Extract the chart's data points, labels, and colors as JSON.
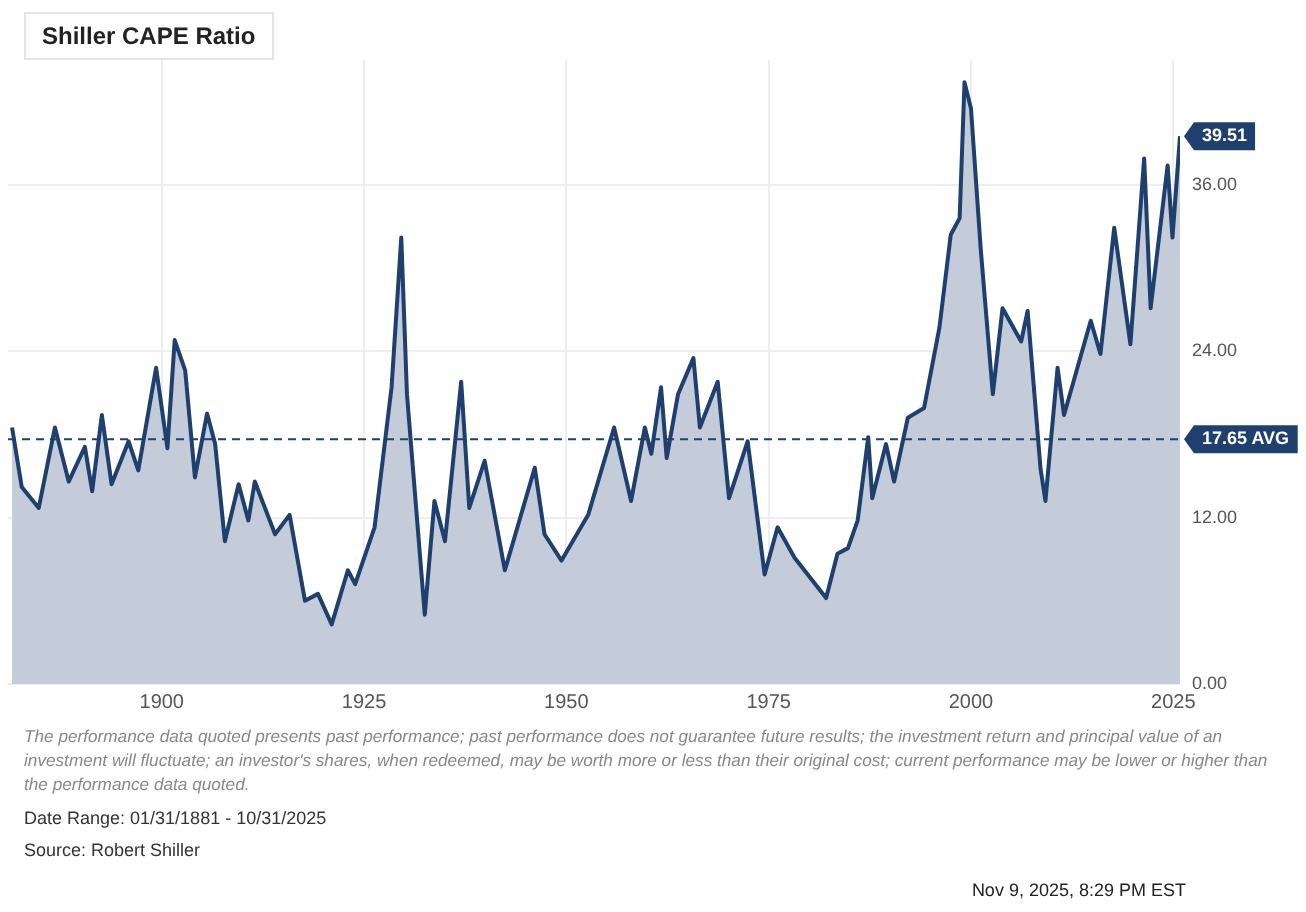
{
  "chart_data": {
    "type": "area",
    "title": "Shiller CAPE Ratio",
    "x": [
      1881.5,
      1882.7,
      1884.8,
      1886.8,
      1888.5,
      1890.5,
      1891.4,
      1892.6,
      1893.8,
      1895.9,
      1897.1,
      1899.3,
      1900.7,
      1901.6,
      1902.9,
      1904.1,
      1905.6,
      1906.6,
      1907.8,
      1909.5,
      1910.7,
      1911.5,
      1914,
      1915.8,
      1917.7,
      1919.3,
      1921,
      1923,
      1923.9,
      1926.3,
      1928.4,
      1929.6,
      1930.3,
      1932.5,
      1933.7,
      1935,
      1937,
      1938,
      1939.9,
      1942.4,
      1946.1,
      1947.3,
      1949.4,
      1952.7,
      1955.9,
      1958,
      1959.7,
      1960.5,
      1961.7,
      1962.4,
      1963.8,
      1965.7,
      1966.5,
      1968.7,
      1970.1,
      1972.4,
      1974.5,
      1976.1,
      1978.2,
      1982.1,
      1983.5,
      1984.8,
      1986,
      1987.3,
      1987.8,
      1989.5,
      1990.5,
      1992.2,
      1994.2,
      1996.1,
      1997.5,
      1998.6,
      1999.2,
      2000,
      2001.2,
      2002.7,
      2003.9,
      2006.2,
      2007,
      2008.6,
      2009.2,
      2010.7,
      2011.5,
      2014.8,
      2016,
      2017.7,
      2019.7,
      2021.4,
      2022.2,
      2024.3,
      2024.9,
      2025.83
    ],
    "series": [
      {
        "color": "#1f3f6e",
        "values": [
          18.5,
          14.2,
          12.7,
          18.5,
          14.6,
          17.1,
          13.9,
          19.4,
          14.4,
          17.5,
          15.4,
          22.8,
          17.0,
          24.8,
          22.6,
          14.9,
          19.5,
          17.3,
          10.3,
          14.4,
          11.8,
          14.6,
          10.8,
          12.2,
          6.0,
          6.5,
          4.3,
          8.2,
          7.2,
          11.3,
          21.4,
          32.2,
          20.9,
          5.0,
          13.2,
          10.3,
          21.8,
          12.7,
          16.1,
          8.2,
          15.6,
          10.8,
          8.9,
          12.2,
          18.5,
          13.2,
          18.5,
          16.6,
          21.4,
          16.3,
          20.9,
          23.5,
          18.5,
          21.8,
          13.4,
          17.5,
          7.9,
          11.3,
          9.1,
          6.2,
          9.4,
          9.8,
          11.8,
          17.8,
          13.4,
          17.3,
          14.6,
          19.2,
          19.9,
          25.7,
          32.4,
          33.6,
          43.4,
          41.5,
          31.4,
          20.9,
          27.1,
          24.7,
          26.9,
          15.5,
          13.2,
          22.8,
          19.4,
          26.2,
          23.8,
          32.9,
          24.5,
          37.9,
          27.1,
          37.4,
          32.2,
          39.51
        ]
      }
    ],
    "xlim": [
      1881,
      2025.83
    ],
    "xticks": [
      1900,
      1925,
      1950,
      1975,
      2000,
      2025
    ],
    "ylim": [
      0,
      45
    ],
    "yticks": [
      {
        "value": 0,
        "label": "0.00"
      },
      {
        "value": 12,
        "label": "12.00"
      },
      {
        "value": 24,
        "label": "24.00"
      },
      {
        "value": 36,
        "label": "36.00"
      }
    ],
    "grid": true,
    "marker": "none",
    "line_style": "solid",
    "ref_lines": [
      {
        "axis": "y",
        "value": 17.65,
        "label": "17.65 AVG",
        "color": "#1f3f6e",
        "line_style": "dashed"
      }
    ],
    "annotations": [
      {
        "text": "39.51",
        "x": 2025.83,
        "y": 39.51
      },
      "The performance data quoted presents past performance; past performance does not guarantee future results; the investment return and principal value of an investment will fluctuate; an investor's shares, when redeemed, may be worth more or less than their original cost; current performance may be lower or higher than the performance data quoted.",
      "Date Range: 01/31/1881 - 10/31/2025",
      "Source: Robert Shiller",
      "Nov 9, 2025, 8:29 PM EST"
    ]
  }
}
